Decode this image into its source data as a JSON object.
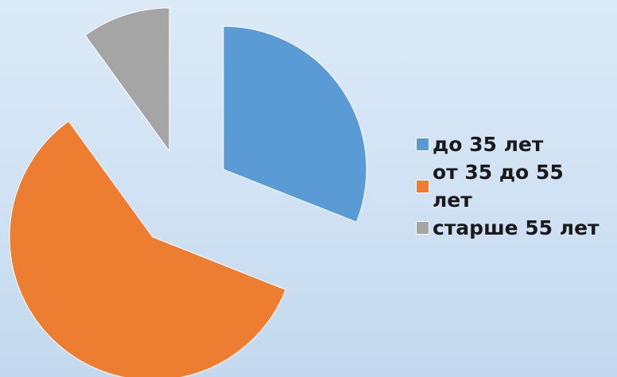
{
  "chart_data": {
    "type": "pie",
    "exploded": true,
    "title": "",
    "slices": [
      {
        "label": "до 35 лет",
        "value": 31,
        "color": "#5b9bd5"
      },
      {
        "label": "от 35 до 55 лет",
        "value": 59,
        "color": "#ed7d31"
      },
      {
        "label": "старше 55 лет",
        "value": 10,
        "color": "#a5a5a5"
      }
    ],
    "legend_position": "right"
  }
}
